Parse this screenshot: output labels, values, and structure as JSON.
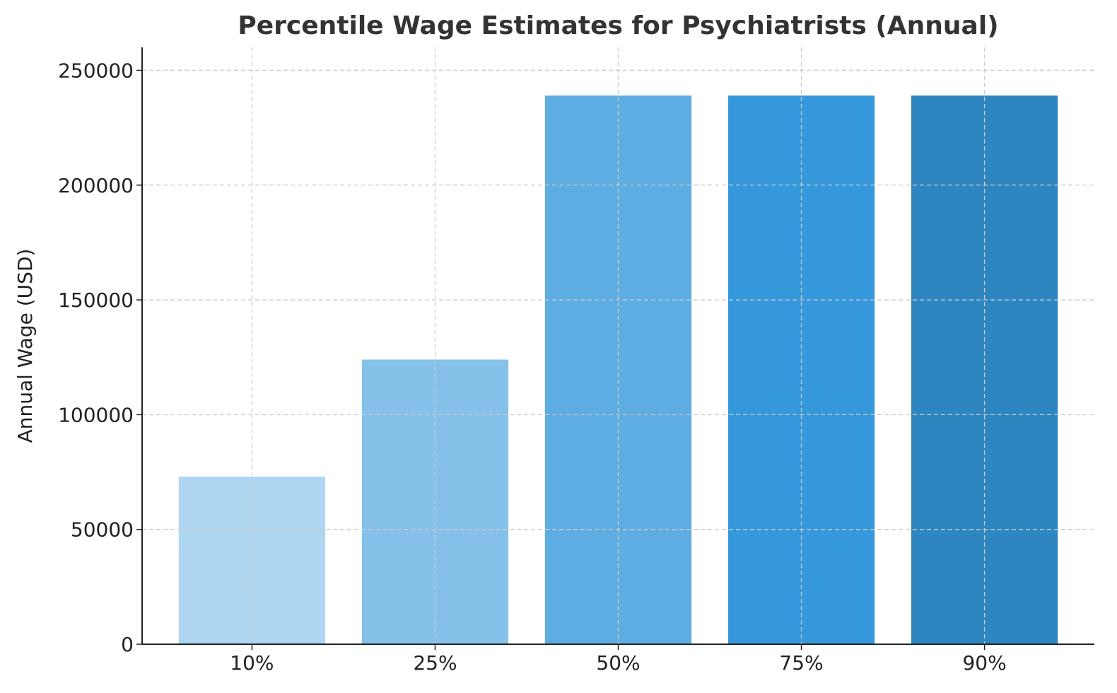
{
  "chart_data": {
    "type": "bar",
    "title": "Percentile Wage Estimates for Psychiatrists (Annual)",
    "xlabel": "",
    "ylabel": "Annual Wage (USD)",
    "categories": [
      "10%",
      "25%",
      "50%",
      "75%",
      "90%"
    ],
    "values": [
      73000,
      124000,
      239000,
      239000,
      239000
    ],
    "colors": [
      "#aed6f1",
      "#85c1e9",
      "#5dade2",
      "#3498db",
      "#2e86c1"
    ],
    "ylim": [
      0,
      260000
    ],
    "yticks": [
      0,
      50000,
      100000,
      150000,
      200000,
      250000
    ],
    "grid": true,
    "legend": "none"
  }
}
